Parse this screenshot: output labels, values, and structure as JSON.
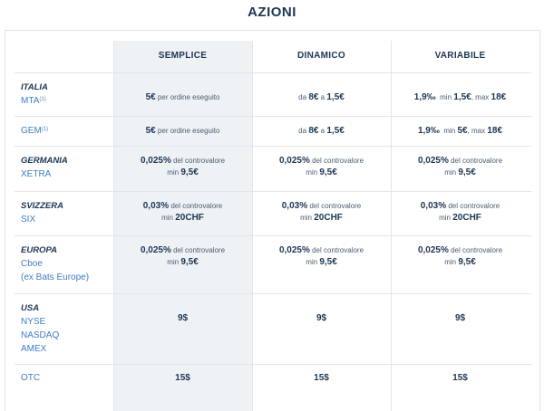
{
  "title": "AZIONI",
  "columns": [
    "SEMPLICE",
    "DINAMICO",
    "VARIABILE"
  ],
  "rows": {
    "italia_mta": {
      "country": "ITALIA",
      "market": "MTA",
      "note": "(1)",
      "semplice": {
        "v": "5€",
        "t": "per ordine eseguito"
      },
      "dinamico": {
        "pre": "da",
        "a": "8€",
        "mid": "a",
        "b": "1,5€"
      },
      "variabile": {
        "a": "1,9‰",
        "mid": "min",
        "b": "1,5€",
        "sep": ", max",
        "c": "18€"
      }
    },
    "italia_gem": {
      "market": "GEM",
      "note": "(1)",
      "semplice": {
        "v": "5€",
        "t": "per ordine eseguito"
      },
      "dinamico": {
        "pre": "da",
        "a": "8€",
        "mid": "a",
        "b": "1,5€"
      },
      "variabile": {
        "a": "1,9‰",
        "mid": "min",
        "b": "5€",
        "sep": ", max",
        "c": "18€"
      }
    },
    "germania": {
      "country": "GERMANIA",
      "market": "XETRA",
      "cell": {
        "v": "0,025%",
        "t": "del controvalore",
        "min": "min",
        "m": "9,5€"
      }
    },
    "svizzera": {
      "country": "SVIZZERA",
      "market": "SIX",
      "cell": {
        "v": "0,03%",
        "t": "del controvalore",
        "min": "min",
        "m": "20CHF"
      }
    },
    "europa": {
      "country": "EUROPA",
      "market": "Cboe",
      "market2": "(ex Bats Europe)",
      "cell": {
        "v": "0,025%",
        "t": "del controvalore",
        "min": "min",
        "m": "9,5€"
      }
    },
    "usa": {
      "country": "USA",
      "markets": [
        "NYSE",
        "NASDAQ",
        "AMEX"
      ],
      "value": "9$"
    },
    "otc": {
      "market": "OTC",
      "value": "15$"
    }
  }
}
